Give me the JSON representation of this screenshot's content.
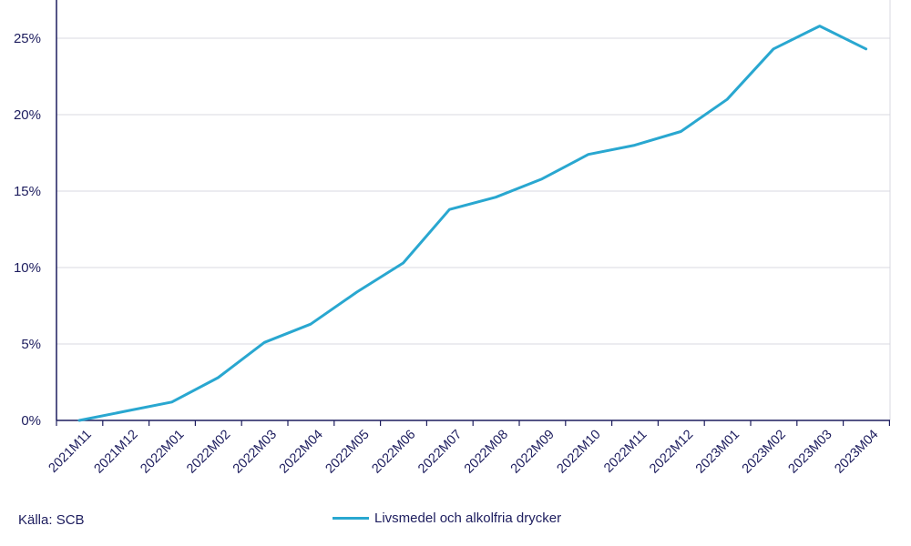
{
  "source": "Källa: SCB",
  "colors": {
    "series": "#29a7d0",
    "grid": "#d9d9e0",
    "axis": "#1d1d5e",
    "text": "#1d1d5e"
  },
  "chart_data": {
    "type": "line",
    "title": "",
    "xlabel": "",
    "ylabel": "",
    "categories": [
      "2021M11",
      "2021M12",
      "2022M01",
      "2022M02",
      "2022M03",
      "2022M04",
      "2022M05",
      "2022M06",
      "2022M07",
      "2022M08",
      "2022M09",
      "2022M10",
      "2022M11",
      "2022M12",
      "2023M01",
      "2023M02",
      "2023M03",
      "2023M04"
    ],
    "ylim": [
      0,
      27.5
    ],
    "yticks": [
      0,
      5,
      10,
      15,
      20,
      25
    ],
    "ytick_labels": [
      "0%",
      "5%",
      "10%",
      "15%",
      "20%",
      "25%"
    ],
    "grid": true,
    "legend_position": "bottom-center",
    "series": [
      {
        "name": "Livsmedel och alkolfria drycker",
        "values": [
          0.0,
          0.6,
          1.2,
          2.8,
          5.1,
          6.3,
          8.4,
          10.3,
          13.8,
          14.6,
          15.8,
          17.4,
          18.0,
          18.9,
          21.0,
          24.3,
          25.8,
          24.3
        ]
      }
    ]
  }
}
